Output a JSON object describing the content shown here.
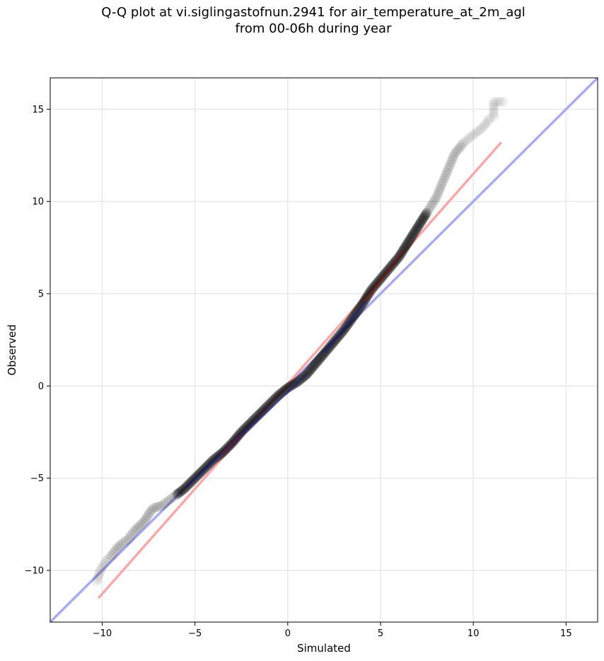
{
  "chart_data": {
    "type": "scatter",
    "title_line1": "Q-Q plot at vi.siglingastofnun.2941 for air_temperature_at_2m_agl",
    "title_line2": "from 00-06h during year",
    "xlabel": "Simulated",
    "ylabel": "Observed",
    "xlim": [
      -12.8,
      16.7
    ],
    "ylim": [
      -12.8,
      16.7
    ],
    "xticks": [
      -10,
      -5,
      0,
      5,
      10,
      15
    ],
    "yticks": [
      -10,
      -5,
      0,
      5,
      10,
      15
    ],
    "xtick_labels": [
      "−10",
      "−5",
      "0",
      "5",
      "10",
      "15"
    ],
    "ytick_labels": [
      "−10",
      "−5",
      "0",
      "5",
      "10",
      "15"
    ],
    "grid": true,
    "colors": {
      "points": "#000000",
      "identity_line": "#aaaaf0",
      "fit_line": "#f7a8a8",
      "dense_blue": "#1a1aa0",
      "dense_red": "#a01010"
    },
    "quantile_points": [
      [
        -10.3,
        -10.6
      ],
      [
        -10.1,
        -10.0
      ],
      [
        -9.8,
        -9.5
      ],
      [
        -9.5,
        -9.2
      ],
      [
        -9.2,
        -8.8
      ],
      [
        -9.0,
        -8.6
      ],
      [
        -8.6,
        -8.3
      ],
      [
        -8.3,
        -7.9
      ],
      [
        -8.0,
        -7.6
      ],
      [
        -7.7,
        -7.3
      ],
      [
        -7.4,
        -6.8
      ],
      [
        -7.2,
        -6.6
      ],
      [
        -6.8,
        -6.5
      ],
      [
        -6.4,
        -6.2
      ],
      [
        -6.0,
        -5.9
      ],
      [
        -5.6,
        -5.6
      ],
      [
        -5.2,
        -5.2
      ],
      [
        -4.8,
        -4.8
      ],
      [
        -4.4,
        -4.4
      ],
      [
        -4.0,
        -4.0
      ],
      [
        -3.5,
        -3.6
      ],
      [
        -3.0,
        -3.1
      ],
      [
        -2.5,
        -2.5
      ],
      [
        -2.0,
        -2.0
      ],
      [
        -1.5,
        -1.5
      ],
      [
        -1.0,
        -1.0
      ],
      [
        -0.5,
        -0.5
      ],
      [
        0.0,
        -0.1
      ],
      [
        0.5,
        0.2
      ],
      [
        1.0,
        0.6
      ],
      [
        1.5,
        1.2
      ],
      [
        2.0,
        1.8
      ],
      [
        2.5,
        2.4
      ],
      [
        3.0,
        3.0
      ],
      [
        3.5,
        3.7
      ],
      [
        4.0,
        4.4
      ],
      [
        4.5,
        5.2
      ],
      [
        5.0,
        5.8
      ],
      [
        5.5,
        6.4
      ],
      [
        6.0,
        7.0
      ],
      [
        6.5,
        7.8
      ],
      [
        7.0,
        8.6
      ],
      [
        7.5,
        9.4
      ],
      [
        8.0,
        10.2
      ],
      [
        8.5,
        11.4
      ],
      [
        9.0,
        12.6
      ],
      [
        9.5,
        13.2
      ],
      [
        10.0,
        13.6
      ],
      [
        10.5,
        14.0
      ],
      [
        10.9,
        14.5
      ],
      [
        11.1,
        14.6
      ],
      [
        11.1,
        15.4
      ],
      [
        11.6,
        15.4
      ]
    ],
    "identity_line": [
      [
        -12.8,
        -12.8
      ],
      [
        16.7,
        16.7
      ]
    ],
    "fit_line": [
      [
        -10.2,
        -11.5
      ],
      [
        11.5,
        13.2
      ]
    ]
  }
}
